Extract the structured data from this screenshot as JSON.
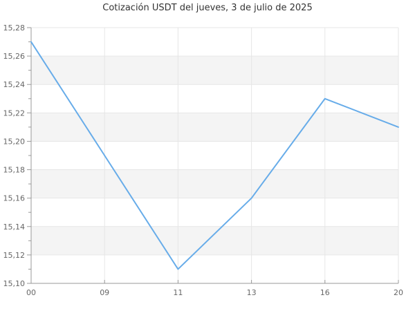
{
  "chart_data": {
    "type": "line",
    "title": "Cotización USDT del jueves, 3 de julio de 2025",
    "categories": [
      "00",
      "09",
      "11",
      "13",
      "16",
      "20"
    ],
    "values": [
      15.27,
      15.19,
      15.11,
      15.16,
      15.23,
      15.21
    ],
    "series_name": "Cotización USDT",
    "xlabel": "",
    "ylabel": "",
    "ylim": [
      15.1,
      15.28
    ],
    "y_major_step": 0.02,
    "y_minor_step": 0.01,
    "decimal_separator": ",",
    "grid": true,
    "alternating_bands": true,
    "legend_position": "none",
    "colors": {
      "line": "#67ace9",
      "grid": "#e6e6e6",
      "band": "#f4f4f4",
      "axis": "#999999",
      "tick": "#999999",
      "label": "#666666",
      "title": "#333333",
      "background": "#ffffff"
    }
  }
}
